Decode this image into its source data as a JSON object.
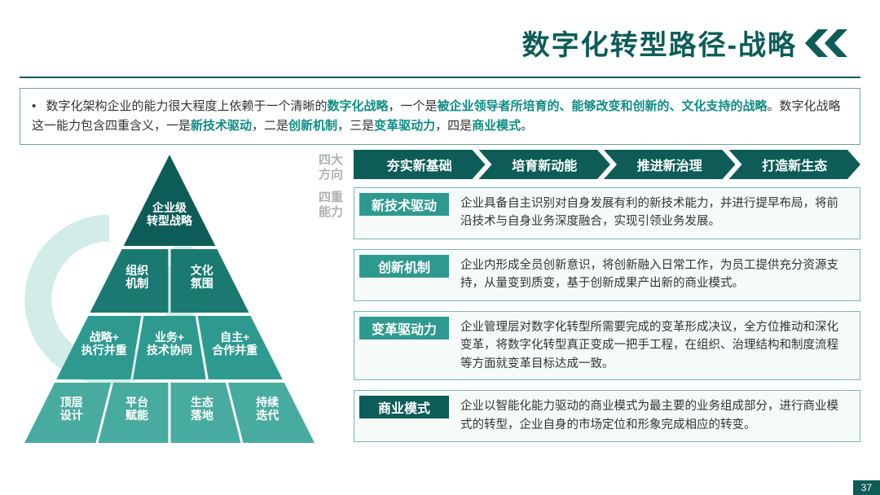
{
  "title": "数字化转型路径-战略",
  "colors": {
    "brand": "#0d5c57",
    "brand_light": "#2e9a8f",
    "cap_colors": [
      "#2e9a8f",
      "#2e9a8f",
      "#2e9a8f",
      "#0d5c57"
    ],
    "box_border": "#7cb8b2",
    "box_bg": "#f6fbf9",
    "row_label": "#aeb2b1",
    "text": "#333333",
    "cycle_arrow": "#7fc9c0",
    "pyramid_tiers": [
      "#0d5c57",
      "#1a7a71",
      "#2e9a8f",
      "#48ab9f"
    ]
  },
  "intro": {
    "segments": [
      {
        "t": "数字化架构企业的能力很大程度上依赖于一个清晰的",
        "em": false
      },
      {
        "t": "数字化战略",
        "em": true
      },
      {
        "t": "，一个是",
        "em": false
      },
      {
        "t": "被企业领导者所培育的、能够改变和创新的、文化支持的战略",
        "em": true
      },
      {
        "t": "。数字化战略这一能力包含四重含义，一是",
        "em": false
      },
      {
        "t": "新技术驱动",
        "em": true
      },
      {
        "t": "，二是",
        "em": false
      },
      {
        "t": "创新机制",
        "em": true
      },
      {
        "t": "，三是",
        "em": false
      },
      {
        "t": "变革驱动力",
        "em": true
      },
      {
        "t": "，四是",
        "em": false
      },
      {
        "t": "商业模式",
        "em": true
      },
      {
        "t": "。",
        "em": false
      }
    ]
  },
  "row_labels": {
    "r1": "四大方向",
    "r2": "四重能力"
  },
  "directions": [
    "夯实新基础",
    "培育新动能",
    "推进新治理",
    "打造新生态"
  ],
  "capabilities": [
    {
      "label": "新技术驱动",
      "body": "企业具备自主识别对自身发展有利的新技术能力，并进行提早布局，将前沿技术与自身业务深度融合，实现引领业务发展。"
    },
    {
      "label": "创新机制",
      "body": "企业内形成全员创新意识，将创新融入日常工作，为员工提供充分资源支持，从量变到质变，基于创新成果产出新的商业模式。"
    },
    {
      "label": "变革驱动力",
      "body": "企业管理层对数字化转型所需要完成的变革形成决议，全方位推动和深化变革，将数字化转型真正变成一把手工程，在组织、治理结构和制度流程等方面就变革目标达成一致。"
    },
    {
      "label": "商业模式",
      "body": "企业以智能化能力驱动的商业模式为最主要的业务组成部分，进行商业模式的转型，企业自身的市场定位和形象完成相应的转变。"
    }
  ],
  "pyramid": {
    "tiers": [
      {
        "labels": [
          "企业级\n转型战略"
        ]
      },
      {
        "labels": [
          "组织\n机制",
          "文化\n氛围"
        ]
      },
      {
        "labels": [
          "战略+\n执行并重",
          "业务+\n技术协同",
          "自主+\n合作并重"
        ]
      },
      {
        "labels": [
          "顶层\n设计",
          "平台\n赋能",
          "生态\n落地",
          "持续\n迭代"
        ]
      }
    ]
  },
  "page_number": "37"
}
